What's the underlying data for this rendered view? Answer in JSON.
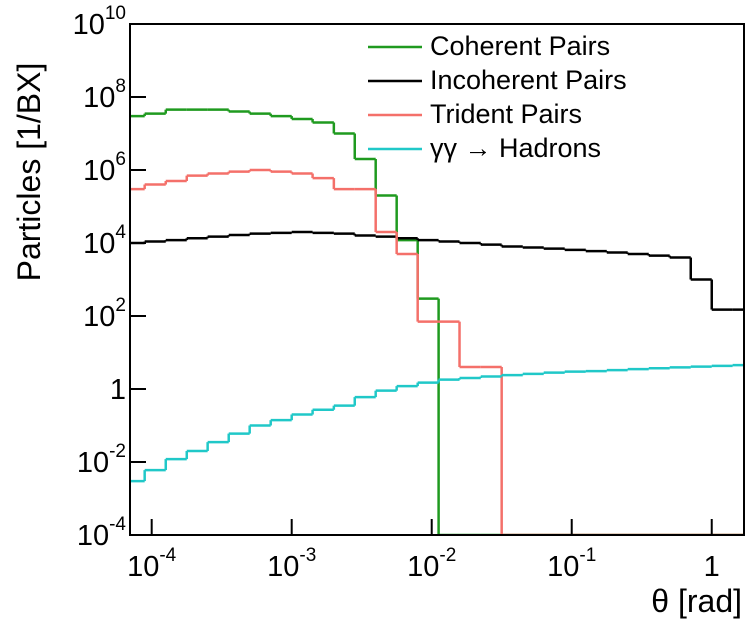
{
  "chart_data": {
    "type": "histogram",
    "x_label": "θ [rad]",
    "y_label": "Particles [1/BX]",
    "xscale": "log",
    "yscale": "log",
    "xlim": [
      7e-05,
      1.7
    ],
    "ylim": [
      0.0001,
      10000000000
    ],
    "xticks": [
      {
        "value": 0.0001,
        "label": "10^-4"
      },
      {
        "value": 0.001,
        "label": "10^-3"
      },
      {
        "value": 0.01,
        "label": "10^-2"
      },
      {
        "value": 0.1,
        "label": "10^-1"
      },
      1
    ],
    "yticks": [
      {
        "value": 0.0001,
        "label": "10^-4"
      },
      {
        "value": 0.01,
        "label": "10^-2"
      },
      1,
      {
        "value": 100,
        "label": "10^2"
      },
      {
        "value": 10000,
        "label": "10^4"
      },
      {
        "value": 1000000,
        "label": "10^6"
      },
      {
        "value": 100000000,
        "label": "10^8"
      },
      {
        "value": 10000000000,
        "label": "10^10"
      }
    ],
    "bins": [
      6.31e-05,
      8.91e-05,
      0.000126,
      0.000178,
      0.000251,
      0.000355,
      0.000501,
      0.000708,
      0.001,
      0.00141,
      0.002,
      0.00282,
      0.00398,
      0.00562,
      0.00794,
      0.0112,
      0.0158,
      0.0224,
      0.0316,
      0.0447,
      0.0631,
      0.0891,
      0.126,
      0.178,
      0.251,
      0.355,
      0.501,
      0.708,
      1.0,
      1.41,
      2.0
    ],
    "legend": "upper right",
    "series": [
      {
        "name": "Coherent Pairs",
        "color": "#1f9a1f",
        "values": [
          30000000,
          35000000,
          45000000,
          45000000,
          45000000,
          40000000,
          35000000,
          30000000,
          25000000,
          20000000,
          10000000,
          2000000,
          200000,
          12000,
          300,
          0.0001,
          0.0001,
          0.0001,
          0.0001,
          0.0001,
          0.0001,
          0.0001,
          0.0001,
          0.0001,
          0.0001,
          0.0001,
          0.0001,
          0.0001,
          0.0001,
          0.0001
        ]
      },
      {
        "name": "Incoherent Pairs",
        "color": "#000000",
        "values": [
          10000,
          11000,
          12000,
          13500,
          15000,
          16500,
          18000,
          19000,
          20000,
          19000,
          18000,
          16000,
          15000,
          13500,
          12000,
          11000,
          10000,
          9000,
          8000,
          7500,
          7000,
          6500,
          6000,
          5500,
          5000,
          4500,
          4000,
          1000,
          150,
          150
        ]
      },
      {
        "name": "Trident Pairs",
        "color": "#f4706a",
        "values": [
          300000,
          400000,
          500000,
          700000,
          800000,
          900000,
          1000000,
          900000,
          800000,
          600000,
          300000,
          300000,
          20000,
          5000,
          70,
          70,
          4,
          4,
          0.0001,
          0.0001,
          0.0001,
          0.0001,
          0.0001,
          0.0001,
          0.0001,
          0.0001,
          0.0001,
          0.0001,
          0.0001,
          0.0001
        ]
      },
      {
        "name": "γγ → Hadrons",
        "color": "#20c8c8",
        "values": [
          0.003,
          0.006,
          0.012,
          0.02,
          0.035,
          0.06,
          0.1,
          0.14,
          0.2,
          0.27,
          0.35,
          0.6,
          0.9,
          1.2,
          1.5,
          1.8,
          2,
          2.2,
          2.4,
          2.6,
          2.8,
          3,
          3.1,
          3.3,
          3.5,
          3.7,
          3.9,
          4.1,
          4.3,
          4.5
        ]
      }
    ]
  }
}
